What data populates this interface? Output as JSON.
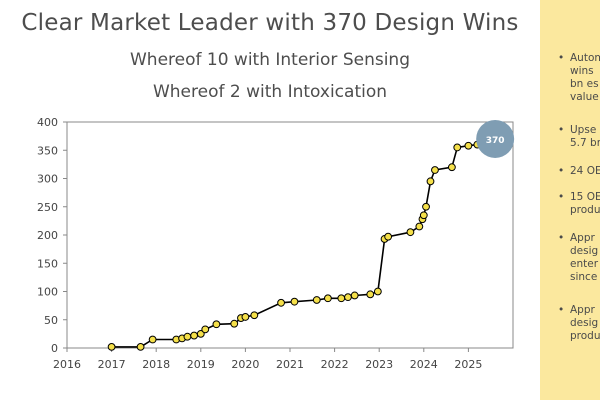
{
  "header": {
    "title": "Clear Market Leader with 370 Design Wins",
    "subtitle1": "Whereof 10 with Interior Sensing",
    "subtitle2": "Whereof 2 with Intoxication"
  },
  "sidebar": {
    "bullet_glyph": "•",
    "items": [
      {
        "lines": [
          "Autom",
          "wins",
          "bn es",
          "value"
        ]
      },
      {
        "lines": [
          "Upse",
          "5.7 br"
        ]
      },
      {
        "lines": [
          "24 OE"
        ]
      },
      {
        "lines": [
          "15 OE",
          "produ"
        ]
      },
      {
        "lines": [
          "Appr",
          "desig",
          "enter",
          "since"
        ]
      },
      {
        "lines": [
          "Appr",
          "desig",
          "produ"
        ]
      }
    ]
  },
  "colors": {
    "accent_panel": "#fbe89e",
    "marker_fill": "#f5e04a",
    "line": "#000000",
    "badge": "#7f9db3",
    "axis": "#888888"
  },
  "chart_data": {
    "type": "line",
    "title": "Clear Market Leader with 370 Design Wins",
    "xlabel": "",
    "ylabel": "",
    "xlim": [
      2016,
      2026
    ],
    "ylim": [
      0,
      400
    ],
    "x_ticks": [
      2016,
      2017,
      2018,
      2019,
      2020,
      2021,
      2022,
      2023,
      2024,
      2025
    ],
    "y_ticks": [
      0,
      50,
      100,
      150,
      200,
      250,
      300,
      350,
      400
    ],
    "series": [
      {
        "name": "Design Wins",
        "x": [
          2017.0,
          2017.65,
          2017.92,
          2018.45,
          2018.58,
          2018.7,
          2018.85,
          2019.0,
          2019.1,
          2019.35,
          2019.75,
          2019.9,
          2020.0,
          2020.2,
          2020.8,
          2021.1,
          2021.6,
          2021.85,
          2022.15,
          2022.3,
          2022.45,
          2022.8,
          2022.97,
          2023.12,
          2023.2,
          2023.7,
          2023.9,
          2023.97,
          2024.0,
          2024.05,
          2024.15,
          2024.25,
          2024.63,
          2024.75,
          2025.0,
          2025.2
        ],
        "values": [
          2,
          2,
          15,
          15,
          17,
          20,
          22,
          25,
          33,
          42,
          43,
          53,
          55,
          58,
          80,
          82,
          85,
          88,
          88,
          90,
          93,
          95,
          100,
          193,
          197,
          205,
          215,
          228,
          235,
          250,
          295,
          315,
          320,
          355,
          358,
          360
        ]
      }
    ],
    "annotation": {
      "label": "370",
      "x": 2025.6,
      "y": 370
    }
  }
}
